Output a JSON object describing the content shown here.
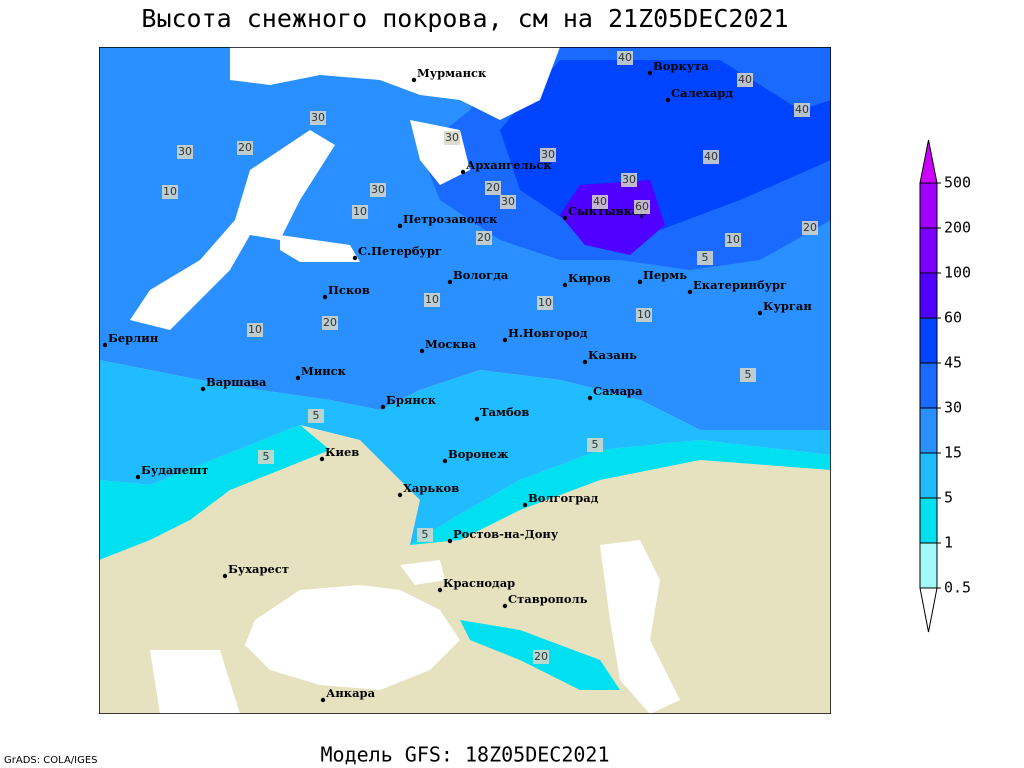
{
  "title": "Высота снежного покрова, см на 21Z05DEC2021",
  "footer": "Модель GFS: 18Z05DEC2021",
  "credit": "GrADS: COLA/IGES",
  "colorbar": {
    "levels": [
      0.5,
      1,
      5,
      15,
      30,
      45,
      60,
      100,
      200,
      500
    ],
    "colors": [
      "#ffffff",
      "#a0f8f8",
      "#00e0f0",
      "#20bcff",
      "#2a90ff",
      "#1a6aff",
      "#0044ff",
      "#5000ff",
      "#7a00ff",
      "#a000ff",
      "#cc00ff"
    ]
  },
  "cities": [
    "Мурманск",
    "Воркута",
    "Салехард",
    "Архангельск",
    "Сыктывкар",
    "Петрозаводск",
    "С.Петербург",
    "Вологда",
    "Киров",
    "Пермь",
    "Екатеринбург",
    "Курган",
    "Псков",
    "Берлин",
    "Н.Новгород",
    "Москва",
    "Казань",
    "Минск",
    "Варшава",
    "Брянск",
    "Самара",
    "Тамбов",
    "Киев",
    "Воронеж",
    "Будапешт",
    "Харьков",
    "Волгоград",
    "Ростов-на-Дону",
    "Бухарест",
    "Краснодар",
    "Ставрополь",
    "Анкара"
  ],
  "contour_labels": [
    40,
    40,
    30,
    40,
    30,
    20,
    30,
    20,
    10,
    30,
    10,
    30,
    20,
    30,
    40,
    60,
    40,
    30,
    10,
    20,
    5,
    10,
    20,
    10,
    10,
    10,
    5,
    5,
    5,
    5,
    5,
    20
  ]
}
